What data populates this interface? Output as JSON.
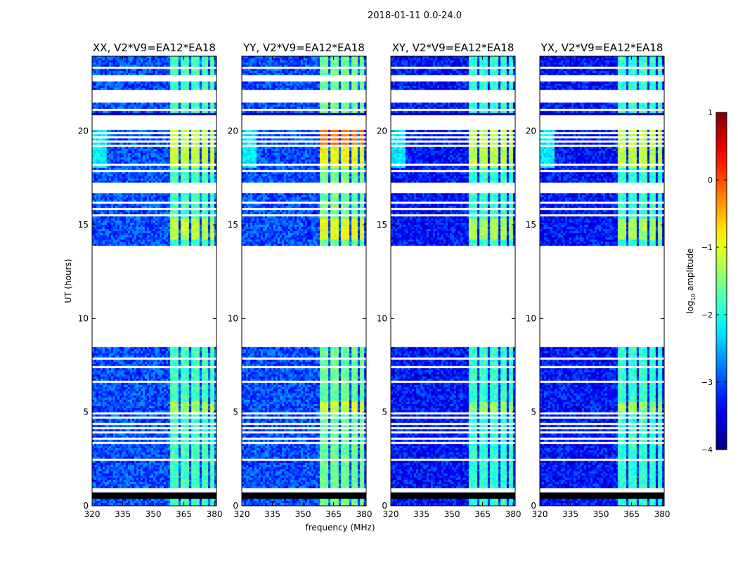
{
  "chart_data": {
    "type": "heatmap",
    "suptitle": "2018-01-11 0.0-24.0",
    "xlabel": "frequency (MHz)",
    "ylabel": "UT (hours)",
    "xlim": [
      320,
      381
    ],
    "ylim": [
      0,
      24
    ],
    "xticks": [
      320,
      335,
      350,
      365,
      380
    ],
    "yticks": [
      0,
      5,
      10,
      15,
      20
    ],
    "rfi_band_mhz": [
      358,
      380
    ],
    "rfi_subbands_mhz": [
      [
        358,
        362.5
      ],
      [
        363.5,
        368
      ],
      [
        369,
        373
      ],
      [
        374,
        377
      ],
      [
        377.5,
        380
      ]
    ],
    "flagged_gaps_hours": [
      [
        0.75,
        0.95
      ],
      [
        1.15,
        1.2
      ],
      [
        1.45,
        1.5
      ],
      [
        1.72,
        1.77
      ],
      [
        2.05,
        2.1
      ],
      [
        2.45,
        2.52
      ],
      [
        2.82,
        2.88
      ],
      [
        3.3,
        3.4
      ],
      [
        3.58,
        3.64
      ],
      [
        3.9,
        3.95
      ],
      [
        4.12,
        4.2
      ],
      [
        4.35,
        4.42
      ],
      [
        4.65,
        4.72
      ],
      [
        4.9,
        4.97
      ],
      [
        6.55,
        6.62
      ],
      [
        7.4,
        7.45
      ],
      [
        7.8,
        7.88
      ],
      [
        8.2,
        8.3
      ],
      [
        8.5,
        13.9
      ],
      [
        15.2,
        15.25
      ],
      [
        15.5,
        15.55
      ],
      [
        15.8,
        15.85
      ],
      [
        16.1,
        16.2
      ],
      [
        16.65,
        17.2
      ],
      [
        17.58,
        17.64
      ],
      [
        17.85,
        17.9
      ],
      [
        18.2,
        18.3
      ],
      [
        18.55,
        18.6
      ],
      [
        18.8,
        18.85
      ],
      [
        19.0,
        19.05
      ],
      [
        19.2,
        19.25
      ],
      [
        19.4,
        19.45
      ],
      [
        19.62,
        19.67
      ],
      [
        19.85,
        19.9
      ],
      [
        20.1,
        20.8
      ],
      [
        21.1,
        21.2
      ],
      [
        21.5,
        22.2
      ],
      [
        22.6,
        23.0
      ],
      [
        23.35,
        23.45
      ]
    ],
    "dark_bands_hours": [
      [
        0.35,
        0.75
      ],
      [
        14.5,
        14.6
      ],
      [
        20.9,
        21.0
      ],
      [
        5.1,
        5.15
      ],
      [
        6.3,
        6.35
      ]
    ],
    "panels": [
      {
        "pol": "XX",
        "title": "XX, V2*V9=EA12*EA18",
        "base_level": -3.0,
        "rfi_level": -1.8,
        "peak_level": -1.1
      },
      {
        "pol": "YY",
        "title": "YY, V2*V9=EA12*EA18",
        "base_level": -3.0,
        "rfi_level": -1.6,
        "peak_level": -0.2
      },
      {
        "pol": "XY",
        "title": "XY, V2*V9=EA12*EA18",
        "base_level": -3.3,
        "rfi_level": -1.9,
        "peak_level": -1.1
      },
      {
        "pol": "YX",
        "title": "YX, V2*V9=EA12*EA18",
        "base_level": -3.3,
        "rfi_level": -1.9,
        "peak_level": -1.1
      }
    ],
    "colorbar": {
      "label": "log10 amplitude",
      "label_base": "log",
      "label_sub": "10",
      "label_rest": " amplitude",
      "range": [
        -4,
        1
      ],
      "ticks": [
        "1",
        "0",
        "−1",
        "−2",
        "−3",
        "−4"
      ],
      "tick_values": [
        1,
        0,
        -1,
        -2,
        -3,
        -4
      ],
      "colormap": "jet"
    }
  }
}
